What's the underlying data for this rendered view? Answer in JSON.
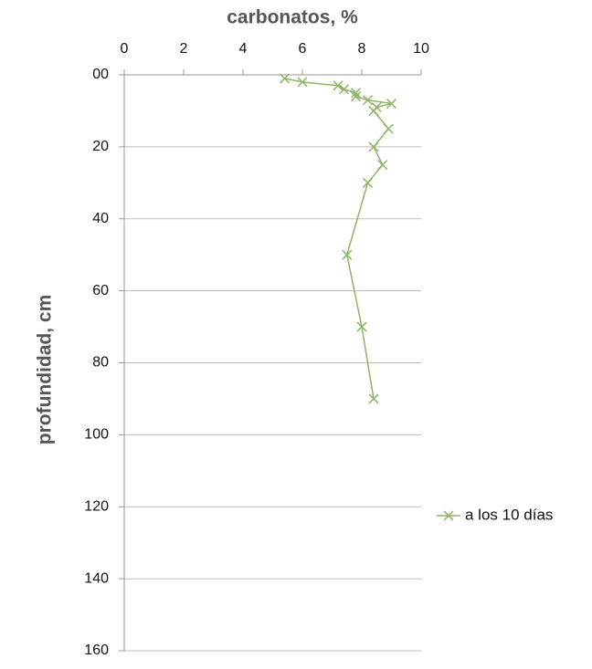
{
  "chart_data": {
    "type": "line",
    "xlabel": "carbonatos,  %",
    "ylabel": "profundidad,  cm",
    "xlim": [
      0,
      10
    ],
    "xticks": [
      0,
      2,
      4,
      6,
      8,
      10
    ],
    "ylim": [
      0,
      160
    ],
    "yticks": [
      {
        "value": 0,
        "label": "00"
      },
      20,
      40,
      60,
      80,
      100,
      120,
      140,
      160
    ],
    "y_reversed": true,
    "x_axis_position": "top",
    "grid": true,
    "legend_position": "right",
    "series": [
      {
        "name": "a los 10 días",
        "color": "#8db365",
        "x": [
          5.4,
          6.0,
          7.2,
          7.4,
          7.8,
          7.8,
          8.2,
          9.0,
          8.5,
          8.4,
          8.9,
          8.4,
          8.7,
          8.2,
          7.5,
          8.0,
          8.4
        ],
        "values": [
          1,
          2,
          3,
          4,
          5,
          6,
          7,
          8,
          9,
          10,
          15,
          20,
          25,
          30,
          50,
          70,
          90
        ]
      }
    ]
  }
}
